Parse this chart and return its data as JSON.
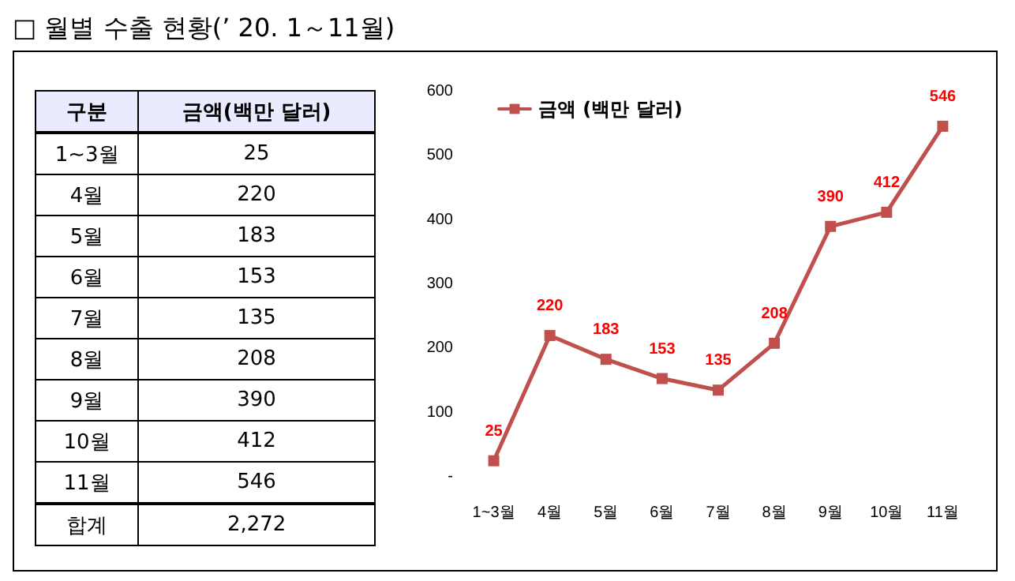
{
  "chart_data": {
    "type": "line",
    "title": "□ 월별 수출 현황(’ 20. 1～11월)",
    "categories": [
      "1~3월",
      "4월",
      "5월",
      "6월",
      "7월",
      "8월",
      "9월",
      "10월",
      "11월"
    ],
    "series": [
      {
        "name": "금액 (백만 달러)",
        "color": "#c0504d",
        "values": [
          25,
          220,
          183,
          153,
          135,
          208,
          390,
          412,
          546
        ],
        "value_labels": [
          "25",
          "220",
          "183",
          "153",
          "135",
          "208",
          "390",
          "412",
          "546"
        ]
      }
    ],
    "ylim": [
      0,
      600
    ],
    "yticks": [
      {
        "value": 0,
        "label": "-"
      },
      100,
      200,
      300,
      400,
      500,
      600
    ],
    "marker": "square",
    "line_style": "solid",
    "grid": false,
    "legend": "top left",
    "annotations": [
      "구분",
      "금액(백만 달러)",
      "합계",
      "2,272"
    ]
  }
}
